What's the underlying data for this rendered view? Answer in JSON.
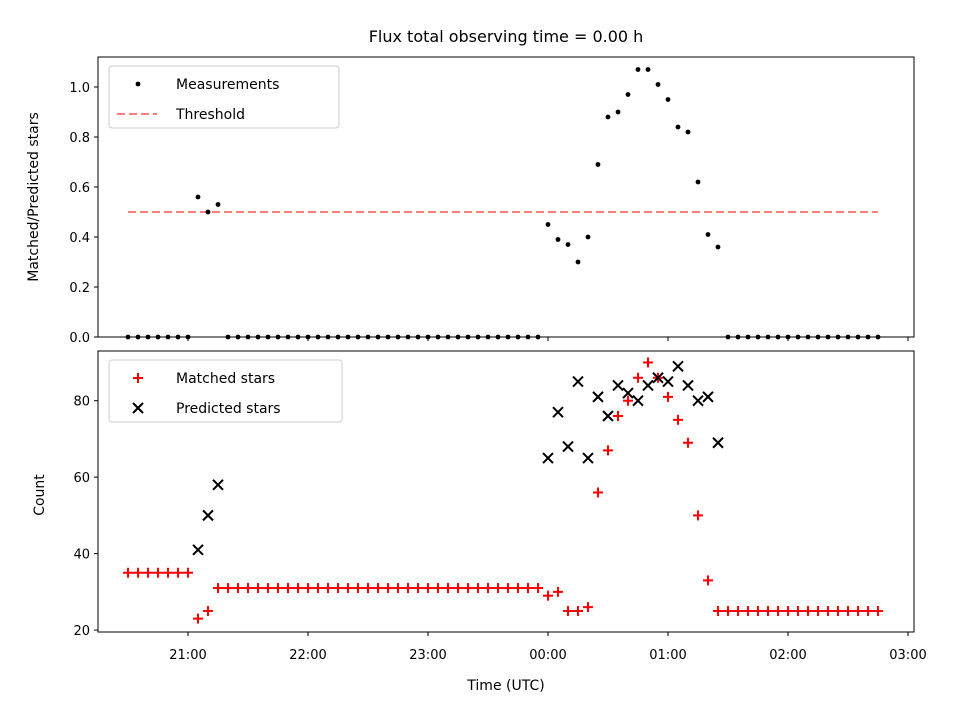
{
  "figure": {
    "title": "Flux total observing time = 0.00 h",
    "xlabel": "Time (UTC)"
  },
  "colors": {
    "matched": "#ff0000",
    "predicted": "#000000",
    "threshold": "#ff7f7f",
    "measurements": "#000000"
  },
  "chart_data": [
    {
      "type": "scatter",
      "title": "Flux total observing time = 0.00 h",
      "xlabel": "",
      "ylabel": "Matched/Predicted stars",
      "xlim": [
        "20:15",
        "03:03"
      ],
      "ylim": [
        0,
        1.12
      ],
      "yticks": [
        0.0,
        0.2,
        0.4,
        0.6,
        0.8,
        1.0
      ],
      "ytick_labels": [
        "0.0",
        "0.2",
        "0.4",
        "0.6",
        "0.8",
        "1.0"
      ],
      "xticks": [
        "21:00",
        "22:00",
        "23:00",
        "00:00",
        "01:00",
        "02:00",
        "03:00"
      ],
      "grid": false,
      "legend": "upper left",
      "threshold": {
        "name": "Threshold",
        "y": 0.5,
        "x_start": "20:30",
        "x_end": "02:45"
      },
      "series": [
        {
          "name": "Measurements",
          "x": [
            "20:30",
            "20:35",
            "20:40",
            "20:45",
            "20:50",
            "20:55",
            "21:00",
            "21:05",
            "21:10",
            "21:15",
            "21:20",
            "21:25",
            "21:30",
            "21:35",
            "21:40",
            "21:45",
            "21:50",
            "21:55",
            "22:00",
            "22:05",
            "22:10",
            "22:15",
            "22:20",
            "22:25",
            "22:30",
            "22:35",
            "22:40",
            "22:45",
            "22:50",
            "22:55",
            "23:00",
            "23:05",
            "23:10",
            "23:15",
            "23:20",
            "23:25",
            "23:30",
            "23:35",
            "23:40",
            "23:45",
            "23:50",
            "23:55",
            "00:00",
            "00:05",
            "00:10",
            "00:15",
            "00:20",
            "00:25",
            "00:30",
            "00:35",
            "00:40",
            "00:45",
            "00:50",
            "00:55",
            "01:00",
            "01:05",
            "01:10",
            "01:15",
            "01:20",
            "01:25",
            "01:30",
            "01:35",
            "01:40",
            "01:45",
            "01:50",
            "01:55",
            "02:00",
            "02:05",
            "02:10",
            "02:15",
            "02:20",
            "02:25",
            "02:30",
            "02:35",
            "02:40",
            "02:45"
          ],
          "y": [
            0,
            0,
            0,
            0,
            0,
            0,
            0,
            0.56,
            0.5,
            0.53,
            0,
            0,
            0,
            0,
            0,
            0,
            0,
            0,
            0,
            0,
            0,
            0,
            0,
            0,
            0,
            0,
            0,
            0,
            0,
            0,
            0,
            0,
            0,
            0,
            0,
            0,
            0,
            0,
            0,
            0,
            0,
            0,
            0.45,
            0.39,
            0.37,
            0.3,
            0.4,
            0.69,
            0.88,
            0.9,
            0.97,
            1.07,
            1.07,
            1.01,
            0.95,
            0.84,
            0.82,
            0.62,
            0.41,
            0.36,
            0,
            0,
            0,
            0,
            0,
            0,
            0,
            0,
            0,
            0,
            0,
            0,
            0,
            0,
            0,
            0
          ]
        }
      ]
    },
    {
      "type": "scatter",
      "title": "",
      "xlabel": "Time (UTC)",
      "ylabel": "Count",
      "xlim": [
        "20:15",
        "03:03"
      ],
      "ylim": [
        19.5,
        93
      ],
      "yticks": [
        20,
        40,
        60,
        80
      ],
      "ytick_labels": [
        "20",
        "40",
        "60",
        "80"
      ],
      "xticks": [
        "21:00",
        "22:00",
        "23:00",
        "00:00",
        "01:00",
        "02:00",
        "03:00"
      ],
      "xtick_labels": [
        "21:00",
        "22:00",
        "23:00",
        "00:00",
        "01:00",
        "02:00",
        "03:00"
      ],
      "grid": false,
      "legend": "upper left",
      "series": [
        {
          "name": "Matched stars",
          "marker": "+",
          "x": [
            "20:30",
            "20:35",
            "20:40",
            "20:45",
            "20:50",
            "20:55",
            "21:00",
            "21:05",
            "21:10",
            "21:15",
            "21:20",
            "21:25",
            "21:30",
            "21:35",
            "21:40",
            "21:45",
            "21:50",
            "21:55",
            "22:00",
            "22:05",
            "22:10",
            "22:15",
            "22:20",
            "22:25",
            "22:30",
            "22:35",
            "22:40",
            "22:45",
            "22:50",
            "22:55",
            "23:00",
            "23:05",
            "23:10",
            "23:15",
            "23:20",
            "23:25",
            "23:30",
            "23:35",
            "23:40",
            "23:45",
            "23:50",
            "23:55",
            "00:00",
            "00:05",
            "00:10",
            "00:15",
            "00:20",
            "00:25",
            "00:30",
            "00:35",
            "00:40",
            "00:45",
            "00:50",
            "00:55",
            "01:00",
            "01:05",
            "01:10",
            "01:15",
            "01:20",
            "01:25",
            "01:30",
            "01:35",
            "01:40",
            "01:45",
            "01:50",
            "01:55",
            "02:00",
            "02:05",
            "02:10",
            "02:15",
            "02:20",
            "02:25",
            "02:30",
            "02:35",
            "02:40",
            "02:45"
          ],
          "y": [
            35,
            35,
            35,
            35,
            35,
            35,
            35,
            23,
            25,
            31,
            31,
            31,
            31,
            31,
            31,
            31,
            31,
            31,
            31,
            31,
            31,
            31,
            31,
            31,
            31,
            31,
            31,
            31,
            31,
            31,
            31,
            31,
            31,
            31,
            31,
            31,
            31,
            31,
            31,
            31,
            31,
            31,
            29,
            30,
            25,
            25,
            26,
            56,
            67,
            76,
            80,
            86,
            90,
            86,
            81,
            75,
            69,
            50,
            33,
            25,
            25,
            25,
            25,
            25,
            25,
            25,
            25,
            25,
            25,
            25,
            25,
            25,
            25,
            25,
            25,
            25
          ]
        },
        {
          "name": "Predicted stars",
          "marker": "x",
          "x": [
            "21:05",
            "21:10",
            "21:15",
            "00:00",
            "00:05",
            "00:10",
            "00:15",
            "00:20",
            "00:25",
            "00:30",
            "00:35",
            "00:40",
            "00:45",
            "00:50",
            "00:55",
            "01:00",
            "01:05",
            "01:10",
            "01:15",
            "01:20",
            "01:25"
          ],
          "y": [
            41,
            50,
            58,
            65,
            77,
            68,
            85,
            65,
            81,
            76,
            84,
            82,
            80,
            84,
            86,
            85,
            89,
            84,
            80,
            81,
            69
          ]
        }
      ]
    }
  ]
}
